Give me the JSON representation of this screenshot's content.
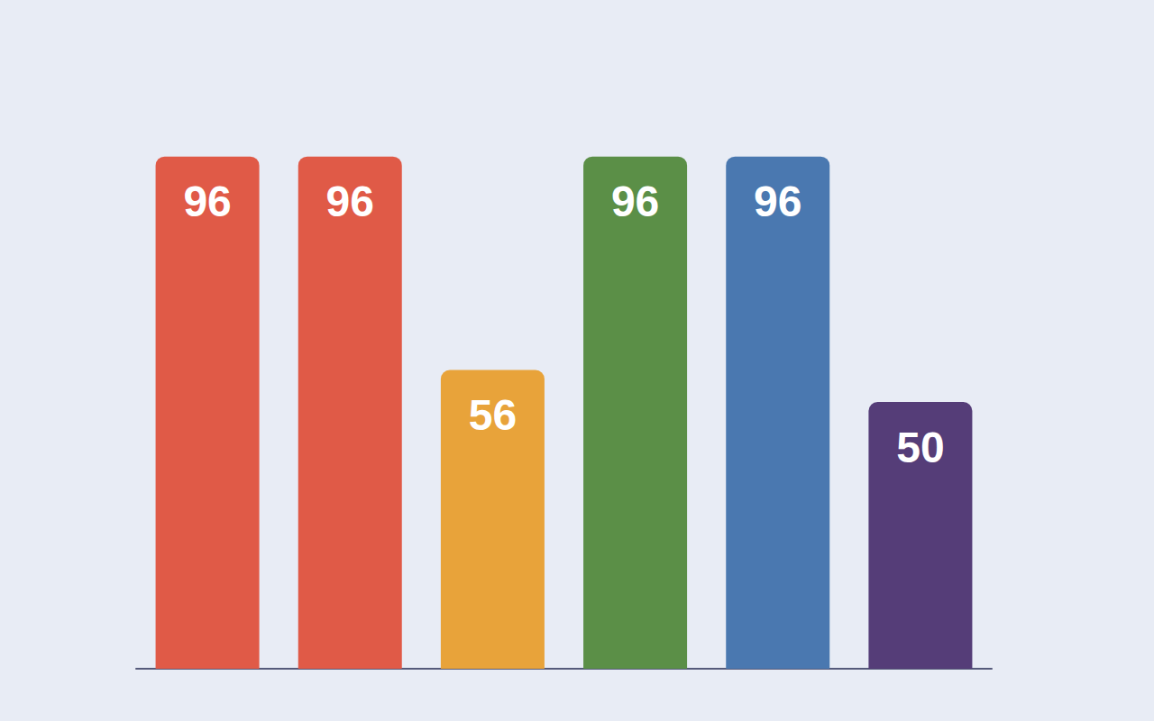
{
  "chart_data": {
    "type": "bar",
    "categories": [
      null,
      null,
      null,
      null,
      null,
      null
    ],
    "values": [
      96,
      96,
      56,
      96,
      96,
      50
    ],
    "colors": [
      "#e05a47",
      "#e05a47",
      "#e8a33a",
      "#5b8f47",
      "#4a78b0",
      "#553d78"
    ],
    "data_labels": true,
    "tick_labels": false,
    "grid": false
  }
}
